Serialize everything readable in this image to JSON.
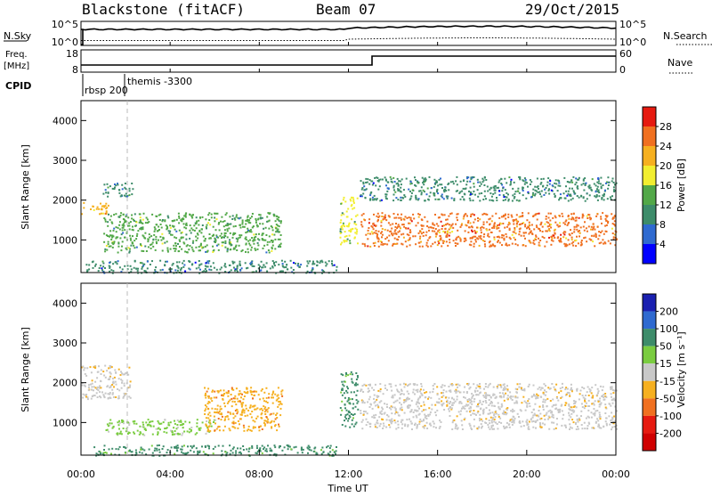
{
  "header": {
    "station": "Blackstone (fitACF)",
    "beam": "Beam 07",
    "date": "29/Oct/2015"
  },
  "summary": {
    "nsky_label": "N.Sky",
    "nsky_ticks": [
      "10^5",
      "10^0"
    ],
    "nsearch_label": "N.Search",
    "nsearch_ticks": [
      "10^5",
      "10^0"
    ],
    "freq_label_1": "Freq.",
    "freq_label_2": "[MHz]",
    "freq_ticks": [
      "18",
      "8"
    ],
    "nave_label": "Nave",
    "nave_ticks": [
      "60",
      "0"
    ],
    "cpid_label": "CPID",
    "cpid_entries": [
      "rbsp 200",
      "themis -3300"
    ]
  },
  "axes": {
    "ylabel": "Slant Range [km]",
    "xlabel": "Time UT",
    "yticks": [
      "1000",
      "2000",
      "3000",
      "4000"
    ],
    "xticks": [
      "00:00",
      "04:00",
      "08:00",
      "12:00",
      "16:00",
      "20:00",
      "00:00"
    ]
  },
  "power_scale": {
    "label": "Power [dB]",
    "ticks": [
      "4",
      "8",
      "12",
      "16",
      "20",
      "24",
      "28"
    ],
    "colors": [
      "#0000ff",
      "#2f6ad0",
      "#3d8c6a",
      "#52a848",
      "#f2ee30",
      "#f6b020",
      "#f07020",
      "#e61a10"
    ]
  },
  "velocity_scale": {
    "label": "Velocity [m s⁻¹]",
    "ticks": [
      "200",
      "100",
      "50",
      "15",
      "-15",
      "-50",
      "-100",
      "-200"
    ],
    "colors": [
      "#1a20b0",
      "#2f6ad0",
      "#3d8c6a",
      "#7acc40",
      "#c8c8c8",
      "#f6b020",
      "#f07020",
      "#e61a10",
      "#d00000"
    ]
  },
  "chart_data": {
    "type": "heatmap",
    "x_range": [
      "00:00",
      "24:00"
    ],
    "y_range_km": [
      180,
      4500
    ],
    "power_panel": {
      "bands": [
        {
          "start_hr": 0.0,
          "end_hr": 1.2,
          "range_km": [
            1650,
            1950
          ],
          "power_db": 22
        },
        {
          "start_hr": 0.9,
          "end_hr": 2.3,
          "range_km": [
            2100,
            2450
          ],
          "power_db": 10
        },
        {
          "start_hr": 1.0,
          "end_hr": 9.0,
          "range_km": [
            700,
            1700
          ],
          "power_db": 12
        },
        {
          "start_hr": 0.2,
          "end_hr": 11.5,
          "range_km": [
            180,
            500
          ],
          "power_db": 8
        },
        {
          "start_hr": 11.6,
          "end_hr": 12.4,
          "range_km": [
            900,
            2100
          ],
          "power_db": 16
        },
        {
          "start_hr": 12.5,
          "end_hr": 24.0,
          "range_km": [
            850,
            1700
          ],
          "power_db": 24
        },
        {
          "start_hr": 12.5,
          "end_hr": 24.0,
          "range_km": [
            2000,
            2600
          ],
          "power_db": 8
        }
      ]
    },
    "velocity_panel": {
      "bands": [
        {
          "start_hr": 0.0,
          "end_hr": 2.2,
          "range_km": [
            1600,
            2450
          ],
          "velocity_ms": -15
        },
        {
          "start_hr": 1.0,
          "end_hr": 6.0,
          "range_km": [
            700,
            1100
          ],
          "velocity_ms": 15
        },
        {
          "start_hr": 5.5,
          "end_hr": 9.0,
          "range_km": [
            800,
            1900
          ],
          "velocity_ms": -50
        },
        {
          "start_hr": 0.5,
          "end_hr": 11.5,
          "range_km": [
            180,
            450
          ],
          "velocity_ms": 50
        },
        {
          "start_hr": 11.6,
          "end_hr": 12.4,
          "range_km": [
            900,
            2300
          ],
          "velocity_ms": 50
        },
        {
          "start_hr": 12.5,
          "end_hr": 24.0,
          "range_km": [
            850,
            2000
          ],
          "velocity_ms": -15
        }
      ]
    }
  }
}
